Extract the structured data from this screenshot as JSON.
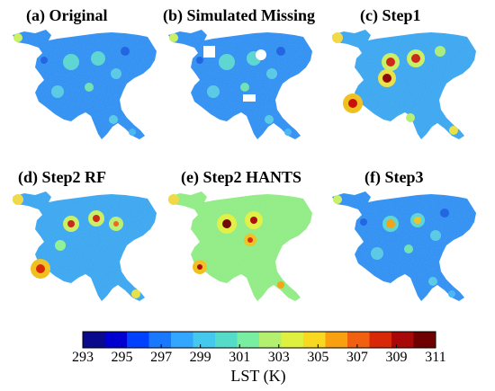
{
  "panels": [
    {
      "title": "(a) Original",
      "scheme": "cool"
    },
    {
      "title": "(b) Simulated Missing",
      "scheme": "cool_missing"
    },
    {
      "title": "(c) Step1",
      "scheme": "hot"
    },
    {
      "title": "(d) Step2 RF",
      "scheme": "hot"
    },
    {
      "title": "(e) Step2 HANTS",
      "scheme": "warm"
    },
    {
      "title": "(f) Step3",
      "scheme": "cool"
    }
  ],
  "colorbar": {
    "title": "LST (K)",
    "ticks": [
      "293",
      "295",
      "297",
      "299",
      "301",
      "303",
      "305",
      "307",
      "309",
      "311"
    ],
    "colors": [
      "#0a0a8c",
      "#0000d0",
      "#0040ff",
      "#1a78ff",
      "#33a6ff",
      "#44c8ee",
      "#55dcc8",
      "#7aeea0",
      "#b4f070",
      "#e0f040",
      "#f8d820",
      "#f8a010",
      "#f06010",
      "#d82808",
      "#a80808",
      "#6e0000"
    ]
  }
}
